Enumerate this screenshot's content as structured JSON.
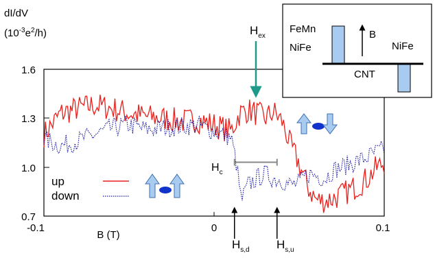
{
  "chart_data": {
    "type": "line",
    "ylabel_line1": "dI/dV",
    "ylabel_line2_prefix": "(10",
    "ylabel_line2_exp": "-3",
    "ylabel_line2_mid": "e",
    "ylabel_line2_exp2": "2",
    "ylabel_line2_suffix": "/h)",
    "xlabel": "B (T)",
    "xlim": [
      -0.1,
      0.1
    ],
    "ylim": [
      0.7,
      1.6
    ],
    "xticks": [
      {
        "value": -0.1,
        "label": "-0.1"
      },
      {
        "value": 0,
        "label": "0"
      },
      {
        "value": 0.1,
        "label": "0.1"
      }
    ],
    "yticks": [
      {
        "value": 0.7,
        "label": "0.7"
      },
      {
        "value": 1.0,
        "label": "1.0"
      },
      {
        "value": 1.3,
        "label": "1.3"
      },
      {
        "value": 1.6,
        "label": "1.6"
      }
    ],
    "series": [
      {
        "name": "up",
        "color": "#e8201c",
        "style": "solid",
        "x": [
          -0.1,
          -0.09,
          -0.08,
          -0.07,
          -0.06,
          -0.05,
          -0.04,
          -0.03,
          -0.02,
          -0.01,
          0.0,
          0.01,
          0.015,
          0.02,
          0.025,
          0.03,
          0.035,
          0.04,
          0.045,
          0.05,
          0.055,
          0.06,
          0.065,
          0.07,
          0.075,
          0.08,
          0.085,
          0.09,
          0.095,
          0.1
        ],
        "values": [
          1.2,
          1.33,
          1.36,
          1.38,
          1.36,
          1.33,
          1.31,
          1.3,
          1.28,
          1.29,
          1.26,
          1.22,
          1.33,
          1.35,
          1.33,
          1.3,
          1.34,
          1.28,
          1.13,
          1.02,
          0.88,
          0.8,
          0.79,
          0.81,
          0.83,
          0.86,
          0.89,
          0.93,
          0.99,
          1.03
        ]
      },
      {
        "name": "down",
        "color": "#1a1aa8",
        "style": "dotted",
        "x": [
          -0.1,
          -0.09,
          -0.08,
          -0.07,
          -0.06,
          -0.05,
          -0.04,
          -0.03,
          -0.02,
          -0.01,
          0.0,
          0.01,
          0.013,
          0.016,
          0.02,
          0.025,
          0.03,
          0.035,
          0.04,
          0.045,
          0.05,
          0.055,
          0.06,
          0.065,
          0.07,
          0.075,
          0.08,
          0.085,
          0.09,
          0.095,
          0.1
        ],
        "values": [
          1.17,
          1.13,
          1.16,
          1.2,
          1.24,
          1.26,
          1.23,
          1.24,
          1.25,
          1.26,
          1.22,
          1.18,
          1.03,
          0.79,
          0.89,
          0.93,
          0.96,
          0.93,
          0.92,
          0.89,
          0.9,
          0.96,
          0.95,
          0.93,
          0.98,
          1.0,
          1.02,
          1.04,
          1.06,
          1.09,
          1.11
        ]
      }
    ],
    "legend": {
      "placement": "bottom-left"
    },
    "annotations": {
      "hex_main": "H",
      "hex_sub": "ex",
      "hc_main": "H",
      "hc_sub": "c",
      "hsd_main": "H",
      "hsd_sub": "s,d",
      "hsu_main": "H",
      "hsu_sub": "s,u",
      "hex_x": 0.025,
      "hsd_x": 0.012,
      "hsu_x": 0.037,
      "hc_span": [
        0.012,
        0.037
      ],
      "hc_y": 1.03
    },
    "inset": {
      "label_femn": "FeMn",
      "label_nife_left": "NiFe",
      "label_nife_right": "NiFe",
      "label_b": "B",
      "label_cnt": "CNT"
    },
    "colors": {
      "frame": "#000000",
      "arrow_hex": "#1f9a8a",
      "hc_bar": "#888888",
      "magnet_fill": "#a9cbf0",
      "spin_blue": "#1133cc"
    }
  }
}
